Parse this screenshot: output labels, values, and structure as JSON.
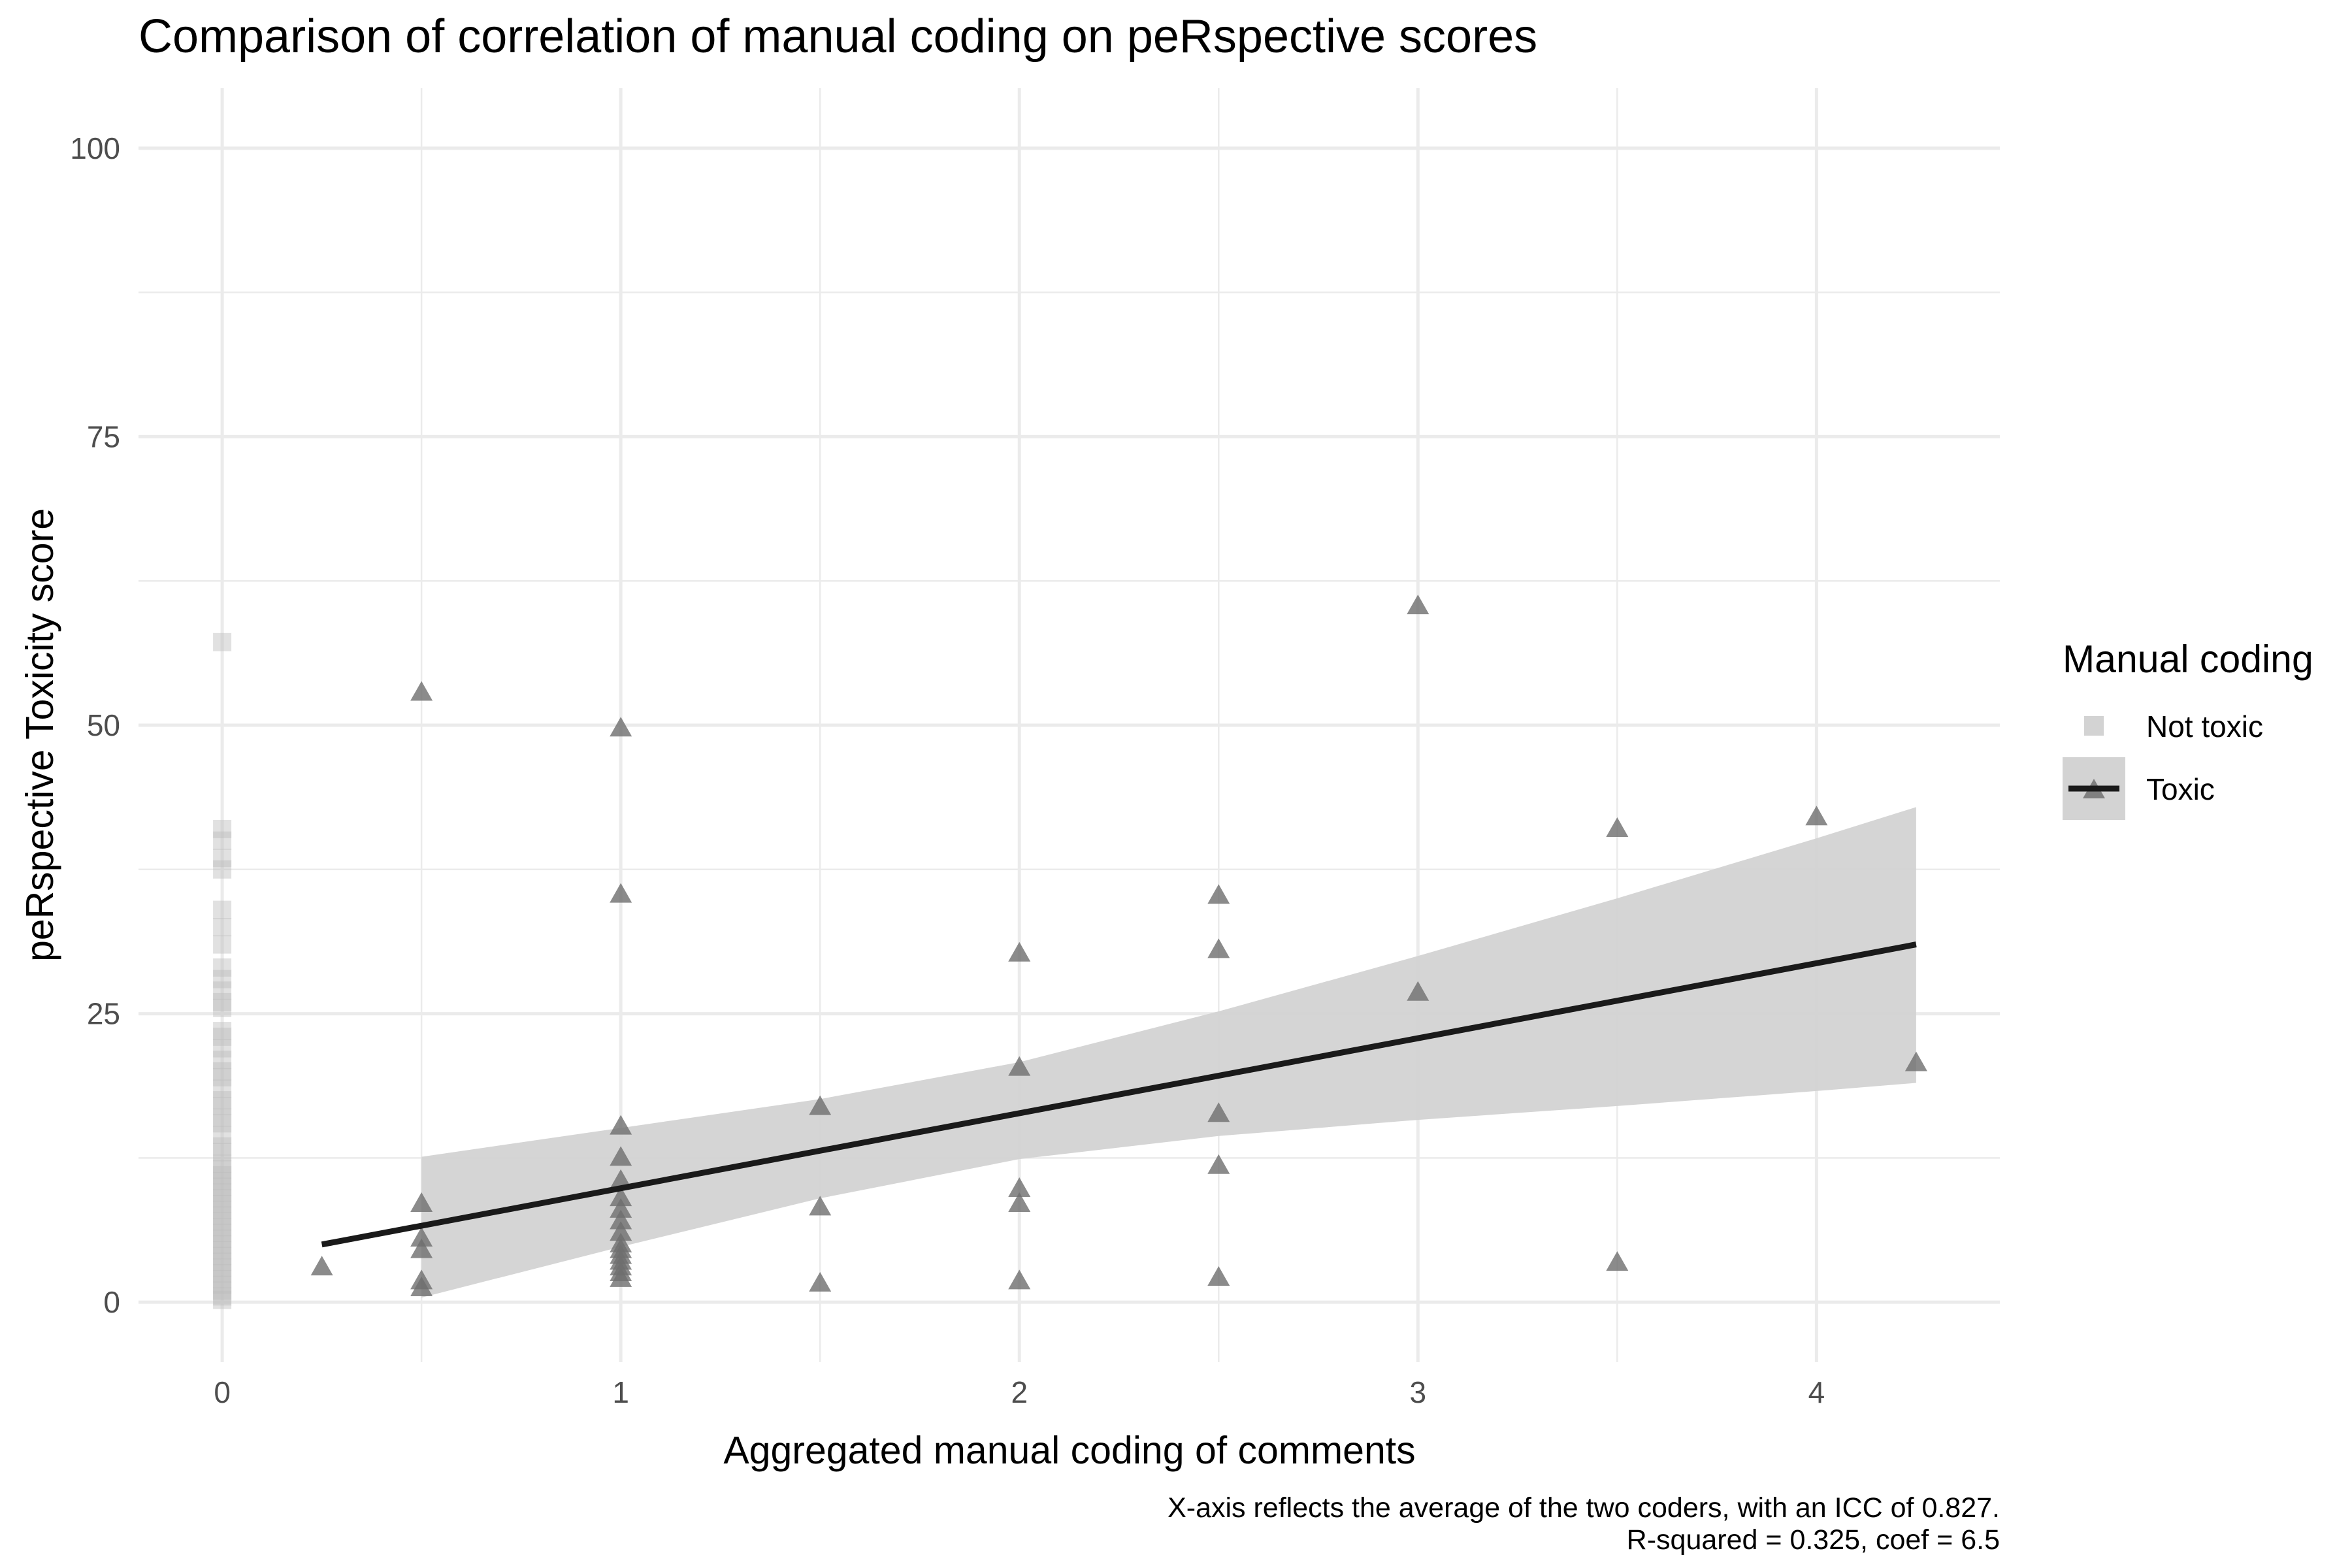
{
  "chart_data": {
    "type": "scatter",
    "title": "Comparison of correlation of manual coding on peRspective scores",
    "xlabel": "Aggregated manual coding of comments",
    "ylabel": "peRspective Toxicity score",
    "caption_lines": [
      "X-axis reflects the average of the two coders, with an ICC of 0.827.",
      "R-squared = 0.325, coef = 6.5"
    ],
    "xlim": [
      -0.21,
      4.46
    ],
    "ylim": [
      -5.2,
      105.2
    ],
    "x_ticks": [
      0,
      1,
      2,
      3,
      4
    ],
    "x_tick_labels": [
      "0",
      "1",
      "2",
      "3",
      "4"
    ],
    "y_ticks": [
      0,
      25,
      50,
      75,
      100
    ],
    "y_tick_labels": [
      "0",
      "25",
      "50",
      "75",
      "100"
    ],
    "grid": true,
    "legend": {
      "title": "Manual coding",
      "position": "right",
      "entries": [
        {
          "label": "Not toxic",
          "shape": "square",
          "color": "#d3d3d3"
        },
        {
          "label": "Toxic",
          "shape": "triangle",
          "color": "#808080"
        }
      ]
    },
    "series": [
      {
        "name": "Not toxic",
        "shape": "square",
        "color": "#bdbdbd",
        "x": [
          0,
          0,
          0,
          0,
          0,
          0,
          0,
          0,
          0,
          0,
          0,
          0,
          0,
          0,
          0,
          0,
          0,
          0,
          0,
          0,
          0,
          0,
          0,
          0,
          0,
          0,
          0,
          0,
          0,
          0,
          0,
          0,
          0,
          0,
          0,
          0,
          0,
          0,
          0,
          0,
          0,
          0,
          0,
          0,
          0,
          0,
          0,
          0,
          0,
          0,
          0,
          0
        ],
        "y": [
          57.2,
          41,
          40,
          37.5,
          34,
          32.5,
          31,
          28,
          27,
          25.5,
          23.5,
          23,
          20,
          19.5,
          18.5,
          17.5,
          17,
          16,
          15.5,
          14.5,
          13.5,
          13,
          12,
          11.5,
          11,
          10.5,
          10,
          9.5,
          9,
          8.5,
          8,
          7.5,
          7,
          6.5,
          6,
          5.5,
          5,
          4.5,
          4,
          3.5,
          3,
          2.5,
          2,
          1.5,
          1,
          0.5,
          0.2,
          22,
          21,
          26,
          29,
          38.5
        ]
      },
      {
        "name": "Toxic",
        "shape": "triangle",
        "color": "#6e6e6e",
        "x": [
          0.25,
          0.5,
          0.5,
          0.5,
          0.5,
          0.5,
          0.5,
          1,
          1,
          1,
          1,
          1,
          1,
          1,
          1,
          1,
          1,
          1,
          1,
          1,
          1,
          1,
          1,
          1.5,
          1.5,
          1.5,
          2,
          2,
          2,
          2,
          2,
          2.5,
          2.5,
          2.5,
          2.5,
          2.5,
          3,
          3,
          3.5,
          3.5,
          4,
          4.25
        ],
        "y": [
          3,
          52.8,
          8.5,
          5.5,
          4.5,
          1.8,
          1.2,
          49.7,
          35.3,
          15.2,
          12.5,
          10.5,
          9,
          8,
          7,
          6,
          5,
          4.5,
          4,
          3.5,
          3,
          2.5,
          2,
          16.9,
          8.2,
          1.6,
          30.2,
          20.3,
          9.8,
          8.5,
          1.8,
          35.2,
          30.5,
          16.3,
          11.8,
          2.1,
          60.3,
          26.8,
          41,
          3.4,
          42,
          20.7
        ]
      }
    ],
    "fit_line": {
      "x": [
        0.25,
        4.25
      ],
      "y": [
        5.0,
        31.0
      ],
      "color": "#1a1a1a",
      "ci_color": "#d3d3d3",
      "ci_upper": [
        [
          0.5,
          12.6
        ],
        [
          1,
          15.1
        ],
        [
          1.5,
          17.6
        ],
        [
          2,
          20.8
        ],
        [
          2.5,
          25.2
        ],
        [
          3,
          30.0
        ],
        [
          3.5,
          35.0
        ],
        [
          4,
          40.2
        ],
        [
          4.25,
          42.9
        ]
      ],
      "ci_lower": [
        [
          0.5,
          0.4
        ],
        [
          1,
          4.8
        ],
        [
          1.5,
          9.0
        ],
        [
          2,
          12.4
        ],
        [
          2.5,
          14.4
        ],
        [
          3,
          15.8
        ],
        [
          3.5,
          17.0
        ],
        [
          4,
          18.3
        ],
        [
          4.25,
          19.0
        ]
      ]
    }
  }
}
